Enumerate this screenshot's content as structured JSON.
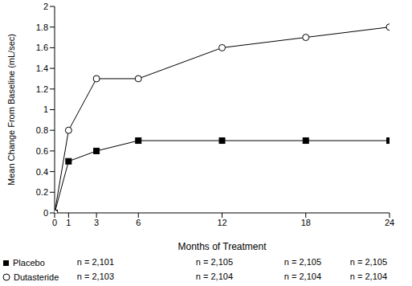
{
  "chart_data": {
    "type": "line",
    "x_label": "Months of Treatment",
    "y_label": "Mean Change From Baseline (mL/sec)",
    "x": [
      0,
      1,
      3,
      6,
      12,
      18,
      24
    ],
    "xlim": [
      0,
      24
    ],
    "xticks": [
      0,
      1,
      3,
      6,
      12,
      18,
      24
    ],
    "ylim": [
      0,
      2
    ],
    "yticks": [
      0,
      0.2,
      0.4,
      0.6,
      0.8,
      1,
      1.2,
      1.4,
      1.6,
      1.8,
      2
    ],
    "grid": false,
    "series": [
      {
        "name": "Placebo",
        "color": "#000000",
        "marker": "square",
        "values": [
          0,
          0.5,
          0.6,
          0.7,
          0.7,
          0.7,
          0.7
        ],
        "n": [
          {
            "value": 2101,
            "label": "n = 2,101"
          },
          {
            "value": 2105,
            "label": "n = 2,105"
          },
          {
            "value": 2105,
            "label": "n = 2,105"
          },
          {
            "value": 2105,
            "label": "n = 2,105"
          }
        ]
      },
      {
        "name": "Dutasteride",
        "color": "#000000",
        "marker": "circle",
        "values": [
          0,
          0.8,
          1.3,
          1.3,
          1.6,
          1.7,
          1.8
        ],
        "n": [
          {
            "value": 2103,
            "label": "n = 2,103"
          },
          {
            "value": 2104,
            "label": "n = 2,104"
          },
          {
            "value": 2104,
            "label": "n = 2,104"
          },
          {
            "value": 2104,
            "label": "n = 2,104"
          }
        ]
      }
    ]
  }
}
